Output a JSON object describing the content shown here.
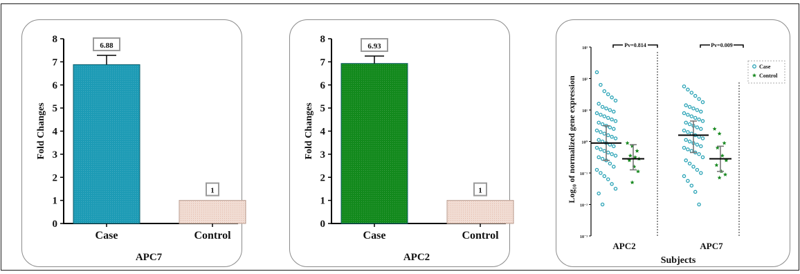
{
  "colors": {
    "apc7_bar": "#1d9bb5",
    "apc2_bar": "#12891c",
    "control_bar": "#f1ddd4",
    "case_dot": "#2aa3b6",
    "control_dot": "#1a8a22"
  },
  "chart_data": [
    {
      "type": "bar",
      "xlabel": "APC7",
      "ylabel": "Fold Changes",
      "categories": [
        "Case",
        "Control"
      ],
      "values": [
        6.88,
        1
      ],
      "value_labels": [
        "6.88",
        "1"
      ],
      "error_upper": [
        7.28,
        null
      ],
      "ylim": [
        0,
        8
      ],
      "yticks": [
        "0",
        "1",
        "2",
        "3",
        "4",
        "5",
        "6",
        "7",
        "8"
      ]
    },
    {
      "type": "bar",
      "xlabel": "APC2",
      "ylabel": "Fold Changes",
      "categories": [
        "Case",
        "Control"
      ],
      "values": [
        6.93,
        1
      ],
      "value_labels": [
        "6.93",
        "1"
      ],
      "error_upper": [
        7.25,
        null
      ],
      "ylim": [
        0,
        8
      ],
      "yticks": [
        "0",
        "1",
        "2",
        "3",
        "4",
        "5",
        "6",
        "7",
        "8"
      ]
    },
    {
      "type": "scatter",
      "xlabel": "Subjects",
      "ylabel": "Log₁₀ of normalized gene expression",
      "categories": [
        "APC2",
        "APC7"
      ],
      "yscale": "log",
      "ylim_exp": [
        -3,
        3
      ],
      "ytick_labels": [
        "10⁻³",
        "10⁻²",
        "10⁻¹",
        "10⁰",
        "10¹",
        "10²",
        "10³"
      ],
      "legend": {
        "position": "top-right",
        "entries": [
          "Case",
          "Control"
        ]
      },
      "annotations": [
        "Pv=0.814",
        "Pv=0.009"
      ],
      "series": [
        {
          "name": "Case",
          "marker": "circle",
          "groups": [
            {
              "category": "APC2",
              "median_exp": -0.05,
              "q1_exp": -0.6,
              "q3_exp": 0.5,
              "values_exp": [
                2.2,
                1.8,
                1.6,
                1.5,
                1.4,
                1.3,
                1.2,
                1.1,
                1.05,
                1.0,
                0.95,
                0.9,
                0.85,
                0.8,
                0.75,
                0.7,
                0.65,
                0.6,
                0.55,
                0.5,
                0.45,
                0.4,
                0.35,
                0.3,
                0.25,
                0.2,
                0.15,
                0.1,
                0.05,
                0.0,
                -0.05,
                -0.1,
                -0.15,
                -0.2,
                -0.25,
                -0.3,
                -0.35,
                -0.4,
                -0.45,
                -0.5,
                -0.55,
                -0.6,
                -0.7,
                -0.8,
                -0.9,
                -1.0,
                -1.1,
                -1.2,
                -1.35,
                -1.5,
                -1.65,
                -2.0
              ]
            },
            {
              "category": "APC7",
              "median_exp": 0.2,
              "q1_exp": -0.35,
              "q3_exp": 0.65,
              "values_exp": [
                1.75,
                1.65,
                1.55,
                1.45,
                1.35,
                1.25,
                1.15,
                1.1,
                1.05,
                1.0,
                0.95,
                0.9,
                0.85,
                0.8,
                0.75,
                0.7,
                0.65,
                0.6,
                0.55,
                0.5,
                0.45,
                0.4,
                0.35,
                0.3,
                0.25,
                0.2,
                0.15,
                0.1,
                0.05,
                0.0,
                -0.05,
                -0.1,
                -0.15,
                -0.2,
                -0.25,
                -0.3,
                -0.35,
                -0.4,
                -0.5,
                -0.6,
                -0.7,
                -0.8,
                -0.9,
                -1.0,
                -1.1,
                -1.25,
                -1.4,
                -1.6,
                -2.0
              ]
            }
          ]
        },
        {
          "name": "Control",
          "marker": "star",
          "groups": [
            {
              "category": "APC2",
              "median_exp": -0.55,
              "q1_exp": -0.9,
              "q3_exp": -0.1,
              "values_exp": [
                -0.05,
                -0.15,
                -0.3,
                -0.45,
                -0.5,
                -0.55,
                -0.6,
                -0.8,
                -0.95,
                -1.3
              ]
            },
            {
              "category": "APC7",
              "median_exp": -0.55,
              "q1_exp": -0.95,
              "q3_exp": -0.15,
              "values_exp": [
                0.4,
                0.25,
                -0.05,
                -0.2,
                -0.45,
                -0.6,
                -0.75,
                -0.95,
                -1.05,
                -1.15
              ]
            }
          ]
        }
      ]
    }
  ]
}
